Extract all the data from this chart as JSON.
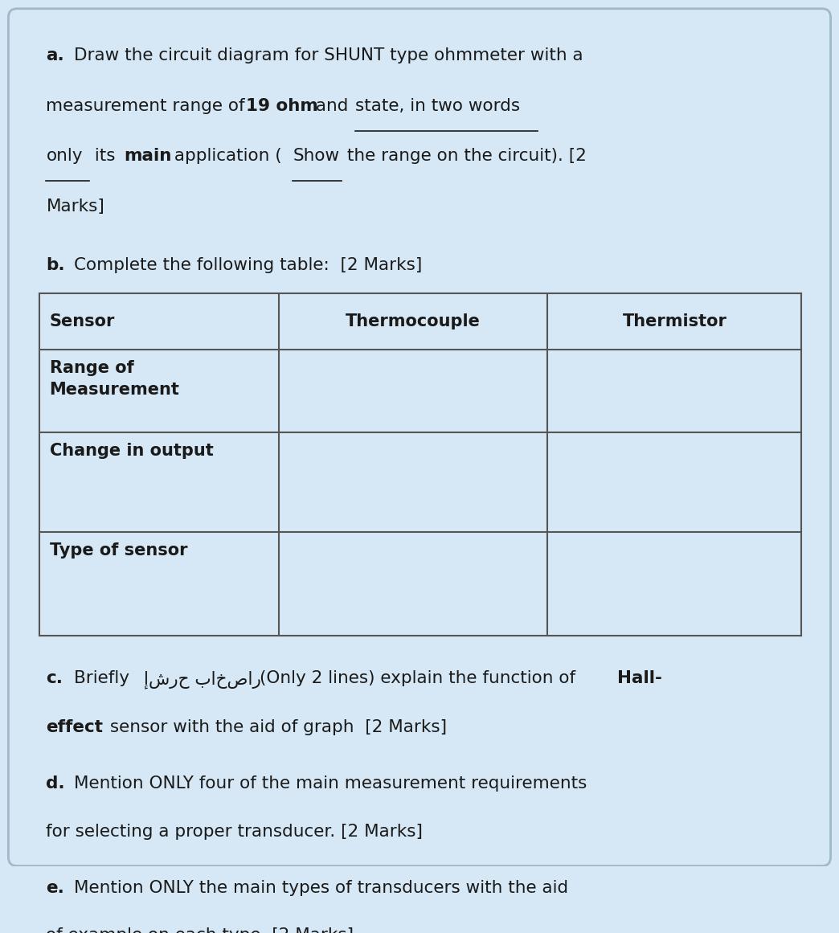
{
  "bg_color": "#d6e8f5",
  "text_color": "#1a1a1a",
  "border_color": "#a0b8cc",
  "table_border_color": "#555555",
  "font_size_body": 15.5,
  "font_size_table": 15,
  "table_headers": [
    "Sensor",
    "Thermocouple",
    "Thermistor"
  ],
  "table_rows": [
    "Range of\nMeasurement",
    "Change in output",
    "Type of sensor"
  ]
}
